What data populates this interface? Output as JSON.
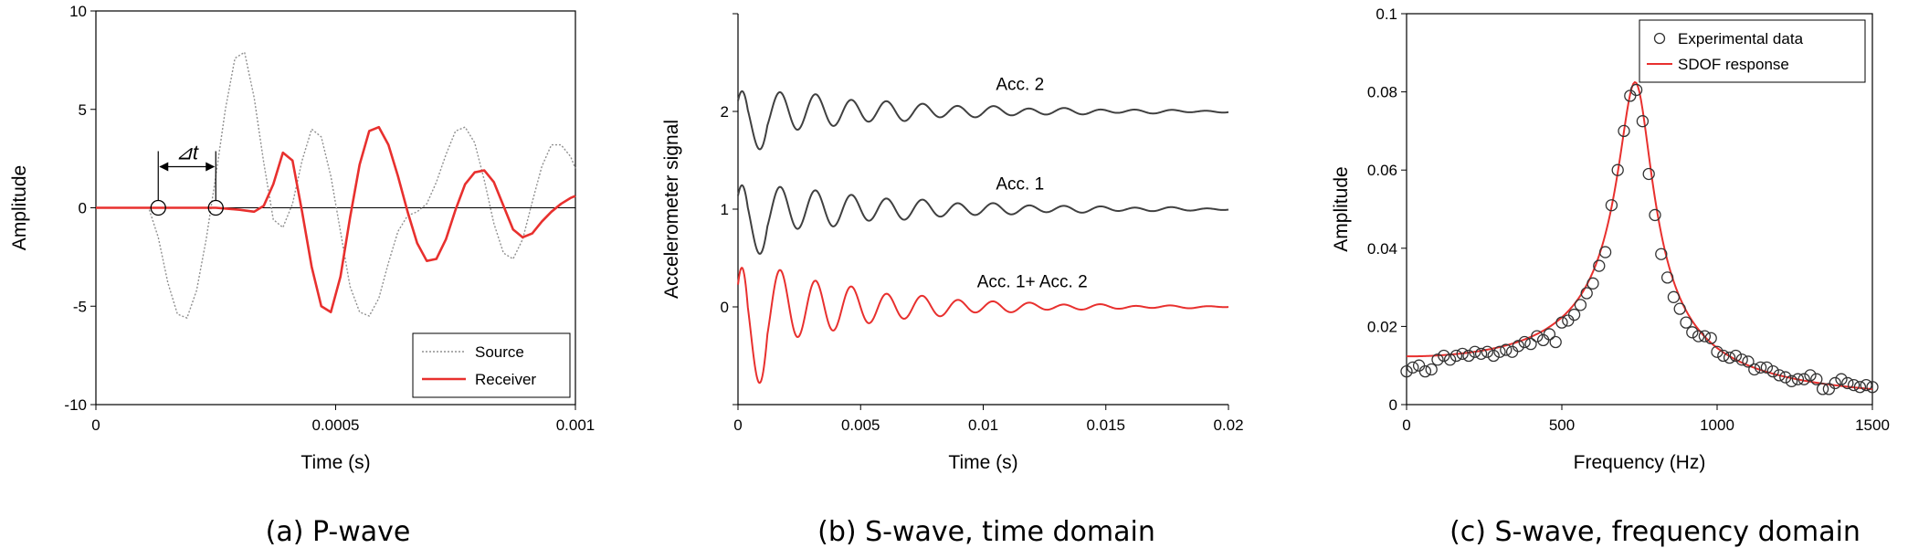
{
  "chart_data": [
    {
      "id": "a",
      "type": "line",
      "caption": "(a) P-wave",
      "title": "",
      "xlabel": "Time (s)",
      "ylabel": "Amplitude",
      "xlim": [
        0,
        0.001
      ],
      "ylim": [
        -10,
        10
      ],
      "xticks": [
        0,
        0.0005,
        0.001
      ],
      "xtick_labels": [
        "0",
        "0.0005",
        "0.001"
      ],
      "yticks": [
        -10,
        -5,
        0,
        5,
        10
      ],
      "ytick_labels": [
        "-10",
        "-5",
        "0",
        "5",
        "10"
      ],
      "grid": false,
      "legend_position": "bottom-right",
      "annotation": "⊿t",
      "markers_at": [
        0.00013,
        0.00025
      ],
      "series": [
        {
          "name": "Source",
          "color": "#909090",
          "style": "dotted",
          "x": [
            0,
            0.00011,
            0.00013,
            0.00015,
            0.00017,
            0.00019,
            0.00021,
            0.00023,
            0.00025,
            0.00027,
            0.00029,
            0.00031,
            0.00033,
            0.00035,
            0.00037,
            0.00039,
            0.00041,
            0.00043,
            0.00045,
            0.00047,
            0.00049,
            0.00051,
            0.00053,
            0.00055,
            0.00057,
            0.00059,
            0.00061,
            0.00063,
            0.00065,
            0.00067,
            0.00069,
            0.00071,
            0.00073,
            0.00075,
            0.00077,
            0.00079,
            0.00081,
            0.00083,
            0.00085,
            0.00087,
            0.00089,
            0.00091,
            0.00093,
            0.00095,
            0.00097,
            0.00099,
            0.001
          ],
          "y": [
            0,
            0,
            -1.5,
            -3.8,
            -5.4,
            -5.6,
            -4.2,
            -1.6,
            1.6,
            5.0,
            7.6,
            7.9,
            5.6,
            2.3,
            -0.6,
            -1.0,
            0.2,
            2.4,
            4.0,
            3.6,
            1.6,
            -1.2,
            -4.0,
            -5.3,
            -5.5,
            -4.6,
            -2.8,
            -1.2,
            -0.4,
            -0.2,
            0.2,
            1.3,
            2.7,
            3.9,
            4.1,
            3.3,
            1.4,
            -0.8,
            -2.3,
            -2.6,
            -1.6,
            0.3,
            2.1,
            3.2,
            3.2,
            2.6,
            2.0
          ]
        },
        {
          "name": "Receiver",
          "color": "#e8302e",
          "style": "solid",
          "x": [
            0,
            0.00025,
            0.0003,
            0.00033,
            0.00035,
            0.00037,
            0.00039,
            0.00041,
            0.00043,
            0.00045,
            0.00047,
            0.00049,
            0.00051,
            0.00053,
            0.00055,
            0.00057,
            0.00059,
            0.00061,
            0.00063,
            0.00065,
            0.00067,
            0.00069,
            0.00071,
            0.00073,
            0.00075,
            0.00077,
            0.00079,
            0.00081,
            0.00083,
            0.00085,
            0.00087,
            0.00089,
            0.00091,
            0.00093,
            0.00095,
            0.00097,
            0.00099,
            0.001
          ],
          "y": [
            0,
            0,
            -0.1,
            -0.2,
            0.1,
            1.2,
            2.8,
            2.4,
            -0.2,
            -3.0,
            -5.0,
            -5.3,
            -3.5,
            -0.5,
            2.2,
            3.9,
            4.1,
            3.2,
            1.6,
            -0.2,
            -1.8,
            -2.7,
            -2.6,
            -1.6,
            -0.1,
            1.2,
            1.8,
            1.9,
            1.3,
            0.1,
            -1.1,
            -1.5,
            -1.3,
            -0.7,
            -0.2,
            0.2,
            0.5,
            0.6
          ]
        }
      ]
    },
    {
      "id": "b",
      "type": "line",
      "caption": "(b) S-wave, time domain",
      "title": "",
      "xlabel": "Time (s)",
      "ylabel": "Accelerometer signal",
      "xlim": [
        0,
        0.02
      ],
      "ylim": [
        -1,
        3
      ],
      "xticks": [
        0,
        0.005,
        0.01,
        0.015,
        0.02
      ],
      "xtick_labels": [
        "0",
        "0.005",
        "0.01",
        "0.015",
        "0.02"
      ],
      "yticks": [
        0,
        1,
        2
      ],
      "ytick_labels": [
        "0",
        "1",
        "2"
      ],
      "grid": false,
      "series": [
        {
          "name": "Acc. 2",
          "label": "Acc. 2",
          "color": "#404040",
          "offset": 2,
          "first_amp": 0.28,
          "decay": 170,
          "period": 0.00145,
          "label_x": 0.0115,
          "label_y": 2.22
        },
        {
          "name": "Acc. 1",
          "label": "Acc. 1",
          "color": "#404040",
          "offset": 1,
          "first_amp": 0.32,
          "decay": 170,
          "period": 0.00145,
          "label_x": 0.0115,
          "label_y": 1.2
        },
        {
          "name": "Acc. 1+ Acc. 2",
          "label": "Acc. 1+ Acc. 2",
          "color": "#e8302e",
          "offset": 0,
          "first_amp": 0.55,
          "decay": 220,
          "period": 0.00145,
          "label_x": 0.012,
          "label_y": 0.2
        }
      ]
    },
    {
      "id": "c",
      "type": "scatter",
      "caption": "(c) S-wave, frequency domain",
      "title": "",
      "xlabel": "Frequency (Hz)",
      "ylabel": "Amplitude",
      "xlim": [
        0,
        1500
      ],
      "ylim": [
        0,
        0.1
      ],
      "xticks": [
        0,
        500,
        1000,
        1500
      ],
      "xtick_labels": [
        "0",
        "500",
        "1000",
        "1500"
      ],
      "yticks": [
        0,
        0.02,
        0.04,
        0.06,
        0.08,
        0.1
      ],
      "ytick_labels": [
        "0",
        "0.02",
        "0.04",
        "0.06",
        "0.08",
        "0.1"
      ],
      "grid": false,
      "legend_position": "top-right",
      "series": [
        {
          "name": "Experimental data",
          "marker": "open-circle",
          "color": "#333333",
          "x": [
            0,
            20,
            40,
            60,
            80,
            100,
            120,
            140,
            160,
            180,
            200,
            220,
            240,
            260,
            280,
            300,
            320,
            340,
            360,
            380,
            400,
            420,
            440,
            460,
            480,
            500,
            520,
            540,
            560,
            580,
            600,
            620,
            640,
            660,
            680,
            700,
            720,
            740,
            760,
            780,
            800,
            820,
            840,
            860,
            880,
            900,
            920,
            940,
            960,
            980,
            1000,
            1020,
            1040,
            1060,
            1080,
            1100,
            1120,
            1140,
            1160,
            1180,
            1200,
            1220,
            1240,
            1260,
            1280,
            1300,
            1320,
            1340,
            1360,
            1380,
            1400,
            1420,
            1440,
            1460,
            1480,
            1500
          ],
          "y": [
            0.0085,
            0.0095,
            0.01,
            0.0085,
            0.009,
            0.0115,
            0.0125,
            0.0115,
            0.0125,
            0.013,
            0.0125,
            0.0135,
            0.013,
            0.0135,
            0.0125,
            0.0135,
            0.014,
            0.0135,
            0.015,
            0.016,
            0.0155,
            0.0175,
            0.0165,
            0.018,
            0.016,
            0.021,
            0.0215,
            0.023,
            0.0255,
            0.0285,
            0.031,
            0.0355,
            0.039,
            0.051,
            0.06,
            0.07,
            0.079,
            0.0805,
            0.0725,
            0.059,
            0.0485,
            0.0385,
            0.0325,
            0.0275,
            0.0245,
            0.021,
            0.0185,
            0.0175,
            0.0175,
            0.017,
            0.0135,
            0.0125,
            0.012,
            0.0125,
            0.0115,
            0.011,
            0.009,
            0.0095,
            0.0095,
            0.0085,
            0.0075,
            0.007,
            0.006,
            0.0065,
            0.0065,
            0.0075,
            0.0065,
            0.004,
            0.004,
            0.0055,
            0.0065,
            0.0055,
            0.005,
            0.0045,
            0.005,
            0.0045
          ]
        },
        {
          "name": "SDOF response",
          "marker": "line",
          "color": "#e8302e",
          "natural_frequency": 740,
          "damping_ratio": 0.075,
          "peak_amplitude": 0.0825,
          "x_range": [
            0,
            1500
          ]
        }
      ]
    }
  ]
}
